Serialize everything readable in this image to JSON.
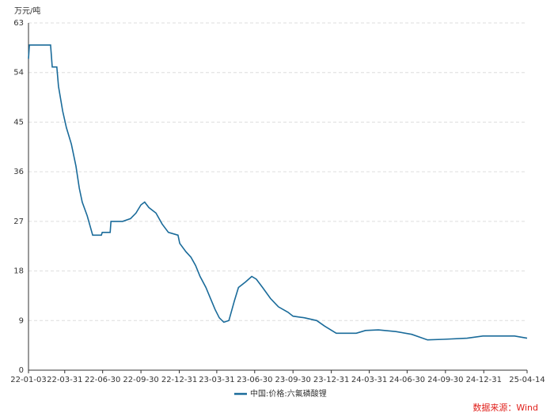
{
  "chart_data": {
    "type": "line",
    "y_unit": "万元/吨",
    "source": "数据来源：Wind",
    "x": [
      "22-01-03",
      "22-01-05",
      "22-02-25",
      "22-03-01",
      "22-03-12",
      "22-03-16",
      "22-03-26",
      "22-04-04",
      "22-04-16",
      "22-04-27",
      "22-05-05",
      "22-05-12",
      "22-05-24",
      "22-06-06",
      "22-06-27",
      "22-06-29",
      "22-07-18",
      "22-07-20",
      "22-08-17",
      "22-09-05",
      "22-09-18",
      "22-09-30",
      "22-10-09",
      "22-10-19",
      "22-11-05",
      "22-11-20",
      "22-12-05",
      "22-12-28",
      "23-01-01",
      "23-01-16",
      "23-01-28",
      "23-02-08",
      "23-02-19",
      "23-03-05",
      "23-03-16",
      "23-03-27",
      "23-04-06",
      "23-04-17",
      "23-04-29",
      "23-05-12",
      "23-05-22",
      "23-06-08",
      "23-06-23",
      "23-07-04",
      "23-07-19",
      "23-08-07",
      "23-08-26",
      "23-09-18",
      "23-09-30",
      "23-10-28",
      "23-11-26",
      "23-12-15",
      "24-01-12",
      "24-02-29",
      "24-03-22",
      "24-04-22",
      "24-06-03",
      "24-07-11",
      "24-08-18",
      "24-09-25",
      "24-11-21",
      "24-12-29",
      "25-03-15",
      "25-04-14"
    ],
    "series": [
      {
        "name": "中国:价格:六氟磷酸锂",
        "color": "#1a6b9a",
        "values": [
          56.5,
          59,
          59,
          55,
          55,
          51.5,
          47,
          44,
          41,
          37,
          33,
          30.5,
          28,
          24.5,
          24.5,
          25,
          25,
          27,
          27,
          27.5,
          28.5,
          30,
          30.5,
          29.5,
          28.5,
          26.5,
          25,
          24.5,
          23,
          21.5,
          20.5,
          19,
          17,
          15,
          13,
          11,
          9.5,
          8.7,
          9,
          12.5,
          15,
          16,
          17,
          16.5,
          15,
          13,
          11.5,
          10.5,
          9.8,
          9.5,
          9,
          8,
          6.7,
          6.7,
          7.2,
          7.3,
          7,
          6.5,
          5.5,
          5.6,
          5.8,
          6.2,
          6.2,
          5.8
        ]
      }
    ],
    "xlim": [
      "22-01-03",
      "25-04-14"
    ],
    "xticks": [
      "22-01-03",
      "22-03-31",
      "22-06-30",
      "22-09-30",
      "22-12-31",
      "23-03-31",
      "23-06-30",
      "23-09-30",
      "23-12-31",
      "24-03-31",
      "24-06-30",
      "24-09-30",
      "24-12-31",
      "25-04-14"
    ],
    "ylim": [
      0,
      63
    ],
    "yticks": [
      0,
      9,
      18,
      27,
      36,
      45,
      54,
      63
    ],
    "grid": true
  }
}
